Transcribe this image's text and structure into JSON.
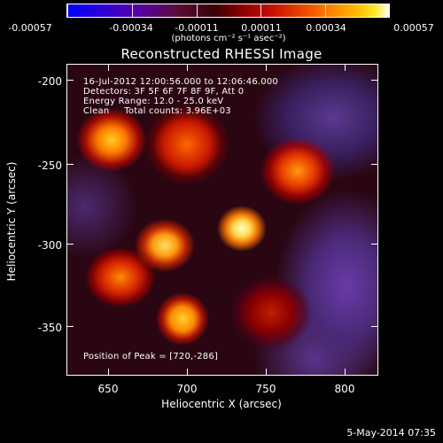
{
  "colorbar": {
    "tick_labels": [
      "-0.00057",
      "-0.00034",
      "-0.00011",
      "0.00011",
      "0.00034",
      "0.00057"
    ],
    "units": "(photons cm⁻² s⁻¹ asec⁻²)"
  },
  "plot": {
    "title": "Reconstructed RHESSI Image",
    "info_lines": [
      "16-Jul-2012 12:00:56.000 to 12:06:46.000",
      "Detectors: 3F 5F 6F 7F 8F 9F, Att 0",
      "Energy Range: 12.0 - 25.0 keV",
      "Clean     Total counts: 3.96E+03"
    ],
    "peak_label": "Position of Peak = [720,-286]",
    "xlabel": "Heliocentric X (arcsec)",
    "ylabel": "Heliocentric Y (arcsec)",
    "xtick_labels": [
      "650",
      "700",
      "750",
      "800"
    ],
    "ytick_labels": [
      "-200",
      "-250",
      "-300",
      "-350"
    ]
  },
  "footer": {
    "datestamp": "5-May-2014 07:35"
  },
  "colors": {
    "background": "#000000",
    "colorbar_low": "#0000ff",
    "colorbar_high": "#ffffff"
  }
}
